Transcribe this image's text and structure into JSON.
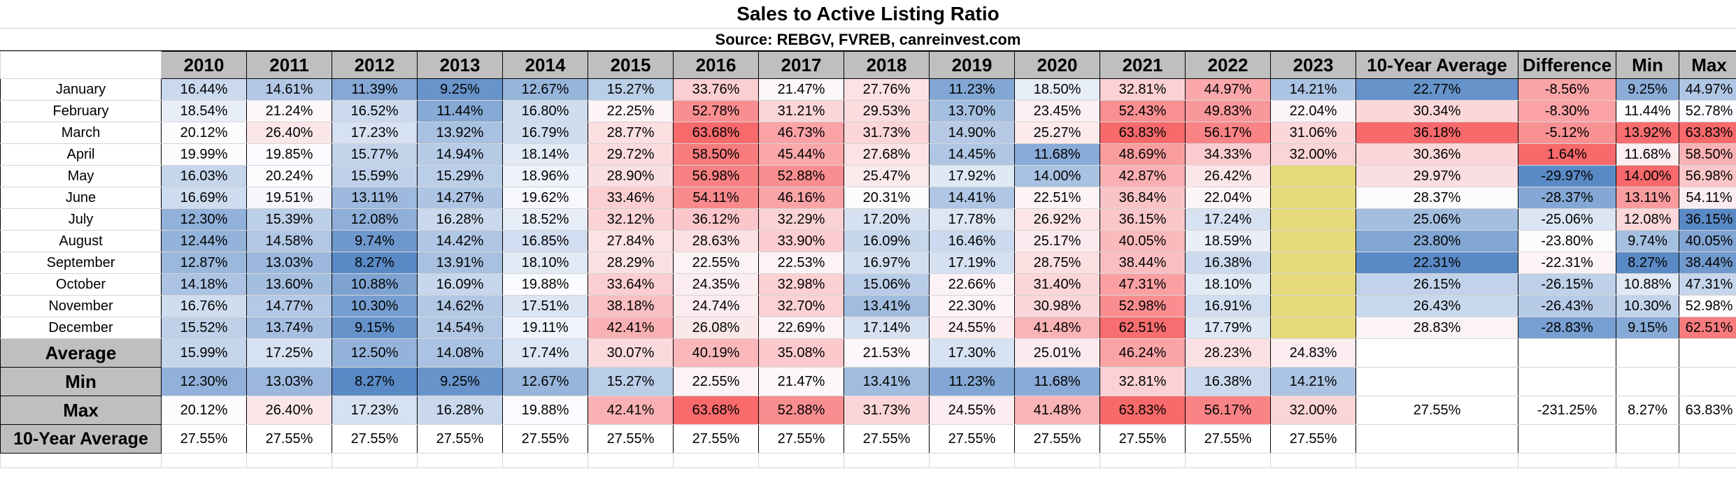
{
  "title": "Sales to Active Listing Ratio",
  "source": "Source: REBGV, FVREB, canreinvest.com",
  "headers": [
    "2010",
    "2011",
    "2012",
    "2013",
    "2014",
    "2015",
    "2016",
    "2017",
    "2018",
    "2019",
    "2020",
    "2021",
    "2022",
    "2023",
    "10-Year Average",
    "Difference",
    "Min",
    "Max"
  ],
  "months": [
    {
      "label": "January",
      "vals": [
        "16.44%",
        "14.61%",
        "11.39%",
        "9.25%",
        "12.67%",
        "15.27%",
        "33.76%",
        "21.47%",
        "27.76%",
        "11.23%",
        "18.50%",
        "32.81%",
        "44.97%",
        "14.21%",
        "22.77%",
        "-8.56%",
        "9.25%",
        "44.97%"
      ]
    },
    {
      "label": "February",
      "vals": [
        "18.54%",
        "21.24%",
        "16.52%",
        "11.44%",
        "16.80%",
        "22.25%",
        "52.78%",
        "31.21%",
        "29.53%",
        "13.70%",
        "23.45%",
        "52.43%",
        "49.83%",
        "22.04%",
        "30.34%",
        "-8.30%",
        "11.44%",
        "52.78%"
      ]
    },
    {
      "label": "March",
      "vals": [
        "20.12%",
        "26.40%",
        "17.23%",
        "13.92%",
        "16.79%",
        "28.77%",
        "63.68%",
        "46.73%",
        "31.73%",
        "14.90%",
        "25.27%",
        "63.83%",
        "56.17%",
        "31.06%",
        "36.18%",
        "-5.12%",
        "13.92%",
        "63.83%"
      ]
    },
    {
      "label": "April",
      "vals": [
        "19.99%",
        "19.85%",
        "15.77%",
        "14.94%",
        "18.14%",
        "29.72%",
        "58.50%",
        "45.44%",
        "27.68%",
        "14.45%",
        "11.68%",
        "48.69%",
        "34.33%",
        "32.00%",
        "30.36%",
        "1.64%",
        "11.68%",
        "58.50%"
      ]
    },
    {
      "label": "May",
      "vals": [
        "16.03%",
        "20.24%",
        "15.59%",
        "15.29%",
        "18.96%",
        "28.90%",
        "56.98%",
        "52.88%",
        "25.47%",
        "17.92%",
        "14.00%",
        "42.87%",
        "26.42%",
        "",
        "29.97%",
        "-29.97%",
        "14.00%",
        "56.98%"
      ]
    },
    {
      "label": "June",
      "vals": [
        "16.69%",
        "19.51%",
        "13.11%",
        "14.27%",
        "19.62%",
        "33.46%",
        "54.11%",
        "46.16%",
        "20.31%",
        "14.41%",
        "22.51%",
        "36.84%",
        "22.04%",
        "",
        "28.37%",
        "-28.37%",
        "13.11%",
        "54.11%"
      ]
    },
    {
      "label": "July",
      "vals": [
        "12.30%",
        "15.39%",
        "12.08%",
        "16.28%",
        "18.52%",
        "32.12%",
        "36.12%",
        "32.29%",
        "17.20%",
        "17.78%",
        "26.92%",
        "36.15%",
        "17.24%",
        "",
        "25.06%",
        "-25.06%",
        "12.08%",
        "36.15%"
      ]
    },
    {
      "label": "August",
      "vals": [
        "12.44%",
        "14.58%",
        "9.74%",
        "14.42%",
        "16.85%",
        "27.84%",
        "28.63%",
        "33.90%",
        "16.09%",
        "16.46%",
        "25.17%",
        "40.05%",
        "18.59%",
        "",
        "23.80%",
        "-23.80%",
        "9.74%",
        "40.05%"
      ]
    },
    {
      "label": "September",
      "vals": [
        "12.87%",
        "13.03%",
        "8.27%",
        "13.91%",
        "18.10%",
        "28.29%",
        "22.55%",
        "22.53%",
        "16.97%",
        "17.19%",
        "28.75%",
        "38.44%",
        "16.38%",
        "",
        "22.31%",
        "-22.31%",
        "8.27%",
        "38.44%"
      ]
    },
    {
      "label": "October",
      "vals": [
        "14.18%",
        "13.60%",
        "10.88%",
        "16.09%",
        "19.88%",
        "33.64%",
        "24.35%",
        "32.98%",
        "15.06%",
        "22.66%",
        "31.40%",
        "47.31%",
        "18.10%",
        "",
        "26.15%",
        "-26.15%",
        "10.88%",
        "47.31%"
      ]
    },
    {
      "label": "November",
      "vals": [
        "16.76%",
        "14.77%",
        "10.30%",
        "14.62%",
        "17.51%",
        "38.18%",
        "24.74%",
        "32.70%",
        "13.41%",
        "22.30%",
        "30.98%",
        "52.98%",
        "16.91%",
        "",
        "26.43%",
        "-26.43%",
        "10.30%",
        "52.98%"
      ]
    },
    {
      "label": "December",
      "vals": [
        "15.52%",
        "13.74%",
        "9.15%",
        "14.54%",
        "19.11%",
        "42.41%",
        "26.08%",
        "22.69%",
        "17.14%",
        "24.55%",
        "41.48%",
        "62.51%",
        "17.79%",
        "",
        "28.83%",
        "-28.83%",
        "9.15%",
        "62.51%"
      ]
    }
  ],
  "summary": [
    {
      "label": "Average",
      "vals": [
        "15.99%",
        "17.25%",
        "12.50%",
        "14.08%",
        "17.74%",
        "30.07%",
        "40.19%",
        "35.08%",
        "21.53%",
        "17.30%",
        "25.01%",
        "46.24%",
        "28.23%",
        "24.83%",
        "",
        "",
        "",
        ""
      ]
    },
    {
      "label": "Min",
      "vals": [
        "12.30%",
        "13.03%",
        "8.27%",
        "9.25%",
        "12.67%",
        "15.27%",
        "22.55%",
        "21.47%",
        "13.41%",
        "11.23%",
        "11.68%",
        "32.81%",
        "16.38%",
        "14.21%",
        "",
        "",
        "",
        ""
      ]
    },
    {
      "label": "Max",
      "vals": [
        "20.12%",
        "26.40%",
        "17.23%",
        "16.28%",
        "19.88%",
        "42.41%",
        "63.68%",
        "52.88%",
        "31.73%",
        "24.55%",
        "41.48%",
        "63.83%",
        "56.17%",
        "32.00%",
        "27.55%",
        "-231.25%",
        "8.27%",
        "63.83%"
      ]
    },
    {
      "label": "10-Year Average",
      "vals": [
        "27.55%",
        "27.55%",
        "27.55%",
        "27.55%",
        "27.55%",
        "27.55%",
        "27.55%",
        "27.55%",
        "27.55%",
        "27.55%",
        "27.55%",
        "27.55%",
        "27.55%",
        "27.55%",
        "",
        "",
        "",
        ""
      ]
    }
  ],
  "colors": {
    "header_gray": "#bfbfbf",
    "blue_strong": "#5a8ac6",
    "red_strong": "#f8696b",
    "neutral": "#fcfcff",
    "highlight_yellow": "#e6d97a"
  },
  "highlight_blank_2023": true
}
